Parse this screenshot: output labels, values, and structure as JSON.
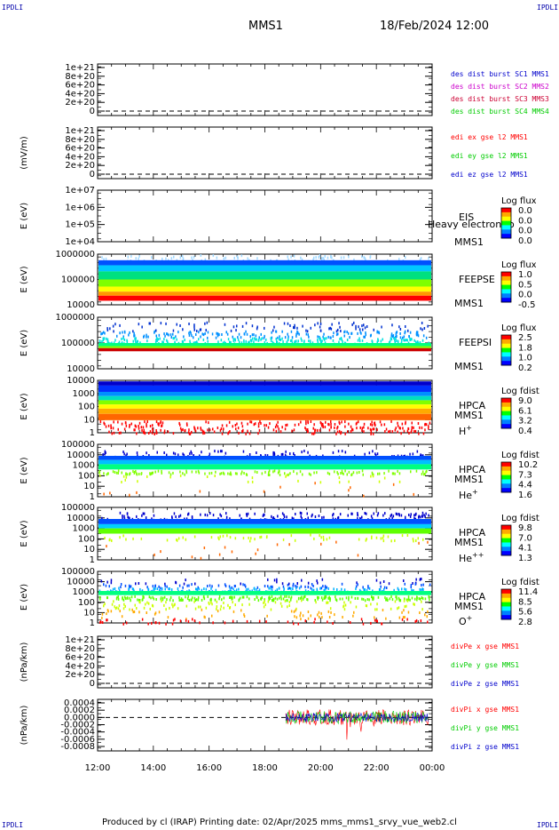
{
  "corners": {
    "tl": "IPDLI",
    "tr": "IPDLI",
    "bl": "IPDLI",
    "br": "IPDLI"
  },
  "header": {
    "spacecraft": "MMS1",
    "datetime": "18/Feb/2024 12:00"
  },
  "footer": {
    "text": "Produced by cl (IRAP)   Printing date: 02/Apr/2025   mms_mms1_srvy_vue_web2.cl"
  },
  "colors": {
    "red": "#ff0000",
    "green": "#00cc00",
    "blue": "#0000cc",
    "magenta": "#cc00cc",
    "mms3": "#cc0033"
  },
  "chart_data": {
    "type": "multi-panel time series / spectrogram",
    "x_ticks": [
      "12:00",
      "14:00",
      "16:00",
      "18:00",
      "20:00",
      "22:00",
      "00:00"
    ],
    "x_range_hours": [
      12,
      24
    ],
    "panels": [
      {
        "id": "p1",
        "type": "line",
        "ylabel": "",
        "ticks": [
          "1e+21",
          "8e+20",
          "6e+20",
          "4e+20",
          "2e+20",
          "0"
        ],
        "ylim": [
          0,
          1.1e+21
        ],
        "dashed_zero": true,
        "legend": [
          {
            "text": "des dist burst SC1 MMS1",
            "color": "#0000cc"
          },
          {
            "text": "des dist burst SC2 MMS2",
            "color": "#cc00cc"
          },
          {
            "text": "des dist burst SC3 MMS3",
            "color": "#cc0033"
          },
          {
            "text": "des dist burst SC4 MMS4",
            "color": "#00cc00"
          }
        ]
      },
      {
        "id": "p2",
        "type": "line",
        "ylabel": "(mV/m)",
        "ticks": [
          "1e+21",
          "8e+20",
          "6e+20",
          "4e+20",
          "2e+20",
          "0"
        ],
        "ylim": [
          0,
          1.1e+21
        ],
        "dashed_zero": true,
        "legend": [
          {
            "text": "edi ex gse l2 MMS1",
            "color": "#ff0000"
          },
          {
            "text": "edi ey gse l2 MMS1",
            "color": "#00cc00"
          },
          {
            "text": "edi ez gse l2 MMS1",
            "color": "#0000cc"
          }
        ]
      },
      {
        "id": "p3",
        "type": "heatmap",
        "ylabel": "E (eV)",
        "ticks": [
          "1e+07",
          "1e+06",
          "1e+05",
          "1e+04"
        ],
        "side": [
          "EIS",
          "MMS1"
        ],
        "overlay": "Heavy electron to",
        "cb_title": "Log flux",
        "cb_values": [
          "0.0",
          "0.0",
          "0.0",
          "0.0"
        ],
        "data": "none"
      },
      {
        "id": "p4",
        "type": "heatmap",
        "ylabel": "E (eV)",
        "ticks": [
          "1000000",
          "100000",
          "10000"
        ],
        "side": [
          "FEEPSE",
          "MMS1"
        ],
        "cb_title": "Log flux",
        "cb_values": [
          "1.0",
          "0.5",
          "0.0",
          "-0.5"
        ],
        "data": "continuous 12:00-24:00"
      },
      {
        "id": "p5",
        "type": "heatmap",
        "ylabel": "E (eV)",
        "ticks": [
          "1000000",
          "100000",
          "10000"
        ],
        "side": [
          "FEEPSI",
          "MMS1"
        ],
        "cb_title": "Log flux",
        "cb_values": [
          "2.5",
          "1.8",
          "1.0",
          "0.2"
        ],
        "data": "continuous 12:00-24:00"
      },
      {
        "id": "p6",
        "type": "heatmap",
        "ylabel": "E (eV)",
        "ticks": [
          "10000",
          "1000",
          "100",
          "10",
          "1"
        ],
        "side": [
          "HPCA",
          "MMS1"
        ],
        "species": "H",
        "species_sup": "+",
        "cb_title": "Log fdist",
        "cb_values": [
          "9.0",
          "6.1",
          "3.2",
          "0.4"
        ],
        "data": "continuous 12:00-24:00"
      },
      {
        "id": "p7",
        "type": "heatmap",
        "ylabel": "E (eV)",
        "ticks": [
          "100000",
          "10000",
          "1000",
          "100",
          "10",
          "1"
        ],
        "side": [
          "HPCA",
          "MMS1"
        ],
        "species": "He",
        "species_sup": "+",
        "cb_title": "Log fdist",
        "cb_values": [
          "10.2",
          "7.3",
          "4.4",
          "1.6"
        ],
        "data": "continuous 12:00-24:00"
      },
      {
        "id": "p8",
        "type": "heatmap",
        "ylabel": "E (eV)",
        "ticks": [
          "100000",
          "10000",
          "1000",
          "100",
          "10",
          "1"
        ],
        "side": [
          "HPCA",
          "MMS1"
        ],
        "species": "He",
        "species_sup": "++",
        "cb_title": "Log fdist",
        "cb_values": [
          "9.8",
          "7.0",
          "4.1",
          "1.3"
        ],
        "data": "continuous 12:00-24:00"
      },
      {
        "id": "p9",
        "type": "heatmap",
        "ylabel": "E (eV)",
        "ticks": [
          "100000",
          "10000",
          "1000",
          "100",
          "10",
          "1"
        ],
        "side": [
          "HPCA",
          "MMS1"
        ],
        "species": "O",
        "species_sup": "+",
        "cb_title": "Log fdist",
        "cb_values": [
          "11.4",
          "8.5",
          "5.6",
          "2.8"
        ],
        "data": "continuous 12:00-24:00"
      },
      {
        "id": "p10",
        "type": "line",
        "ylabel": "(nPa/km)",
        "ticks": [
          "1e+21",
          "8e+20",
          "6e+20",
          "4e+20",
          "2e+20",
          "0"
        ],
        "ylim": [
          0,
          1.1e+21
        ],
        "dashed_zero": true,
        "legend": [
          {
            "text": "divPe x gse MMS1",
            "color": "#ff0000"
          },
          {
            "text": "divPe y gse MMS1",
            "color": "#00cc00"
          },
          {
            "text": "divPe z gse MMS1",
            "color": "#0000cc"
          }
        ]
      },
      {
        "id": "p11",
        "type": "line",
        "ylabel": "(nPa/km)",
        "ticks": [
          "0.0004",
          "0.0002",
          "0.0000",
          "-0.0002",
          "-0.0004",
          "-0.0006",
          "-0.0008"
        ],
        "ylim": [
          -0.0009,
          0.0005
        ],
        "dashed_zero": true,
        "data_start_hour": 18.75,
        "legend": [
          {
            "text": "divPi x gse MMS1",
            "color": "#ff0000"
          },
          {
            "text": "divPi y gse MMS1",
            "color": "#00cc00"
          },
          {
            "text": "divPi z gse MMS1",
            "color": "#0000cc"
          }
        ]
      }
    ]
  }
}
